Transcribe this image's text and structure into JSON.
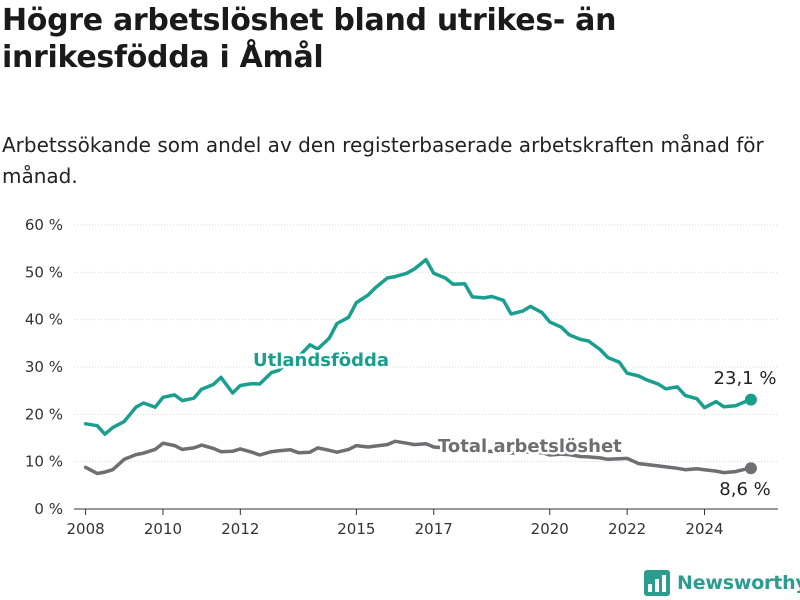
{
  "title": "Högre arbetslöshet bland utrikes- än inrikesfödda i Åmål",
  "subtitle": "Arbetssökande som andel av den registerbaserade arbetskraften månad för månad.",
  "brand": {
    "name": "Newsworthy",
    "color": "#2a9d8f"
  },
  "chart_data": {
    "type": "line",
    "xlim": [
      2007.7,
      2025.9
    ],
    "ylim": [
      0,
      60
    ],
    "yticks": [
      0,
      10,
      20,
      30,
      40,
      50,
      60
    ],
    "ytick_labels": [
      "0 %",
      "10 %",
      "20 %",
      "30 %",
      "40 %",
      "50 %",
      "60 %"
    ],
    "xticks": [
      2008,
      2010,
      2012,
      2015,
      2017,
      2020,
      2022,
      2024
    ],
    "xtick_labels": [
      "2008",
      "2010",
      "2012",
      "2015",
      "2017",
      "2020",
      "2022",
      "2024"
    ],
    "grid": "horizontal",
    "series": [
      {
        "name": "Utlandsfödda",
        "color": "#1a9f8f",
        "end_label": "23,1 %",
        "x": [
          2008.0,
          2008.3,
          2008.5,
          2008.7,
          2009.0,
          2009.3,
          2009.5,
          2009.8,
          2010.0,
          2010.3,
          2010.5,
          2010.8,
          2011.0,
          2011.3,
          2011.5,
          2011.8,
          2012.0,
          2012.3,
          2012.5,
          2012.8,
          2013.0,
          2013.3,
          2013.5,
          2013.8,
          2014.0,
          2014.3,
          2014.5,
          2014.8,
          2015.0,
          2015.3,
          2015.5,
          2015.8,
          2016.0,
          2016.3,
          2016.5,
          2016.8,
          2017.0,
          2017.3,
          2017.5,
          2017.8,
          2018.0,
          2018.3,
          2018.5,
          2018.8,
          2019.0,
          2019.3,
          2019.5,
          2019.8,
          2020.0,
          2020.3,
          2020.5,
          2020.8,
          2021.0,
          2021.3,
          2021.5,
          2021.8,
          2022.0,
          2022.3,
          2022.5,
          2022.8,
          2023.0,
          2023.3,
          2023.5,
          2023.8,
          2024.0,
          2024.3,
          2024.5,
          2024.8,
          2025.0,
          2025.2
        ],
        "values": [
          18,
          17.6,
          15.8,
          17.2,
          18.5,
          21.5,
          22.4,
          21.5,
          23.6,
          24.1,
          22.9,
          23.4,
          25.3,
          26.3,
          27.8,
          24.5,
          26.1,
          26.5,
          26.4,
          28.8,
          29.3,
          31.7,
          32.1,
          34.7,
          33.8,
          36.1,
          39.2,
          40.5,
          43.6,
          45.2,
          46.8,
          48.8,
          49.1,
          49.8,
          50.7,
          52.7,
          49.8,
          48.8,
          47.5,
          47.6,
          44.8,
          44.6,
          44.9,
          44.1,
          41.2,
          41.8,
          42.8,
          41.5,
          39.5,
          38.4,
          36.8,
          35.8,
          35.5,
          33.7,
          32.0,
          31.0,
          28.7,
          28.1,
          27.3,
          26.4,
          25.4,
          25.8,
          24.0,
          23.3,
          21.4,
          22.7,
          21.6,
          21.8,
          22.5,
          23.1
        ]
      },
      {
        "name": "Total arbetslöshet",
        "color": "#6e6e73",
        "end_label": "8,6 %",
        "x": [
          2008.0,
          2008.3,
          2008.5,
          2008.7,
          2009.0,
          2009.3,
          2009.5,
          2009.8,
          2010.0,
          2010.3,
          2010.5,
          2010.8,
          2011.0,
          2011.3,
          2011.5,
          2011.8,
          2012.0,
          2012.3,
          2012.5,
          2012.8,
          2013.0,
          2013.3,
          2013.5,
          2013.8,
          2014.0,
          2014.3,
          2014.5,
          2014.8,
          2015.0,
          2015.3,
          2015.5,
          2015.8,
          2016.0,
          2016.3,
          2016.5,
          2016.8,
          2017.0,
          2017.3,
          2017.5,
          2017.8,
          2018.0,
          2018.3,
          2018.5,
          2018.8,
          2019.0,
          2019.3,
          2019.5,
          2019.8,
          2020.0,
          2020.3,
          2020.5,
          2020.8,
          2021.0,
          2021.3,
          2021.5,
          2021.8,
          2022.0,
          2022.3,
          2022.5,
          2022.8,
          2023.0,
          2023.3,
          2023.5,
          2023.8,
          2024.0,
          2024.3,
          2024.5,
          2024.8,
          2025.0,
          2025.2
        ],
        "values": [
          8.8,
          7.5,
          7.8,
          8.3,
          10.5,
          11.5,
          11.8,
          12.6,
          13.9,
          13.4,
          12.6,
          12.9,
          13.5,
          12.8,
          12.1,
          12.2,
          12.7,
          12.0,
          11.4,
          12.1,
          12.3,
          12.5,
          11.9,
          12.0,
          12.9,
          12.4,
          12.0,
          12.6,
          13.4,
          13.1,
          13.3,
          13.6,
          14.3,
          13.9,
          13.6,
          13.8,
          13.1,
          12.9,
          12.6,
          12.4,
          12.2,
          12.1,
          12.2,
          12.0,
          11.8,
          12.0,
          12.1,
          11.9,
          11.4,
          11.6,
          11.5,
          11.1,
          11.0,
          10.8,
          10.5,
          10.6,
          10.7,
          9.6,
          9.4,
          9.1,
          8.9,
          8.6,
          8.3,
          8.5,
          8.3,
          8.0,
          7.7,
          7.9,
          8.3,
          8.6
        ]
      }
    ]
  }
}
